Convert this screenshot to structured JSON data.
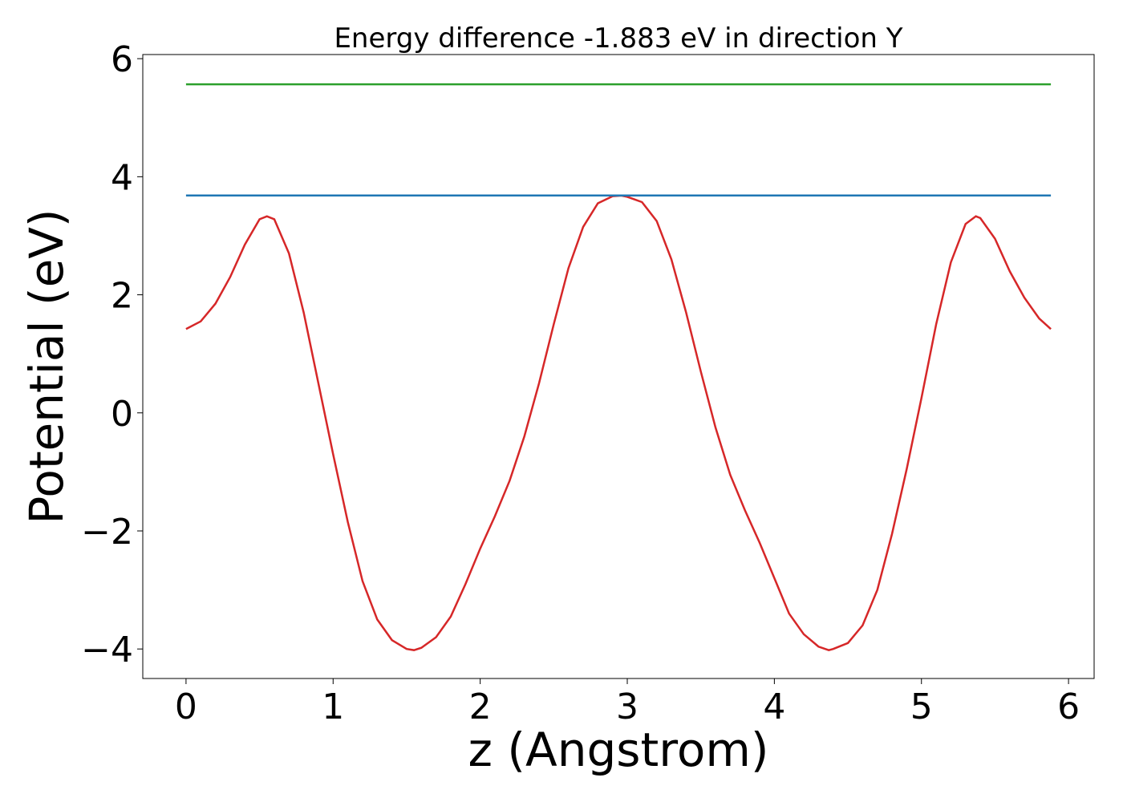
{
  "chart_data": {
    "type": "line",
    "title": "Energy difference -1.883 eV in direction Y",
    "xlabel": "z (Angstrom)",
    "ylabel": "Potential (eV)",
    "xlim": [
      -0.294,
      6.174
    ],
    "ylim": [
      -4.5,
      6.07
    ],
    "xticks": [
      0,
      1,
      2,
      3,
      4,
      5,
      6
    ],
    "yticks": [
      {
        "value": -4,
        "label": "−4"
      },
      {
        "value": -2,
        "label": "−2"
      },
      0,
      2,
      4,
      6
    ],
    "grid": false,
    "series": [
      {
        "color": "#d62728",
        "x": [
          0,
          0.1,
          0.2,
          0.3,
          0.4,
          0.5,
          0.55,
          0.6,
          0.7,
          0.8,
          0.9,
          1.0,
          1.1,
          1.2,
          1.3,
          1.4,
          1.5,
          1.55,
          1.6,
          1.7,
          1.8,
          1.9,
          2.0,
          2.1,
          2.2,
          2.3,
          2.4,
          2.5,
          2.6,
          2.7,
          2.8,
          2.9,
          2.96,
          3.0,
          3.1,
          3.2,
          3.3,
          3.4,
          3.5,
          3.6,
          3.7,
          3.8,
          3.9,
          4.0,
          4.1,
          4.2,
          4.3,
          4.37,
          4.4,
          4.5,
          4.6,
          4.7,
          4.8,
          4.9,
          5.0,
          5.1,
          5.2,
          5.3,
          5.37,
          5.4,
          5.5,
          5.6,
          5.7,
          5.8,
          5.88
        ],
        "values": [
          1.42,
          1.55,
          1.85,
          2.3,
          2.85,
          3.28,
          3.33,
          3.28,
          2.7,
          1.7,
          0.5,
          -0.7,
          -1.85,
          -2.85,
          -3.5,
          -3.85,
          -4.0,
          -4.02,
          -3.98,
          -3.8,
          -3.45,
          -2.9,
          -2.3,
          -1.75,
          -1.15,
          -0.4,
          0.5,
          1.5,
          2.45,
          3.15,
          3.55,
          3.67,
          3.68,
          3.66,
          3.57,
          3.25,
          2.6,
          1.7,
          0.7,
          -0.25,
          -1.05,
          -1.65,
          -2.2,
          -2.8,
          -3.4,
          -3.75,
          -3.96,
          -4.02,
          -4.0,
          -3.9,
          -3.6,
          -3.0,
          -2.05,
          -0.95,
          0.25,
          1.5,
          2.55,
          3.2,
          3.33,
          3.3,
          2.95,
          2.4,
          1.95,
          1.6,
          1.42
        ]
      },
      {
        "color": "#1f77b4",
        "x": [
          0,
          5.88
        ],
        "values": [
          3.682,
          3.682
        ]
      },
      {
        "color": "#2ca02c",
        "x": [
          0,
          5.88
        ],
        "values": [
          5.565,
          5.565
        ]
      }
    ]
  }
}
